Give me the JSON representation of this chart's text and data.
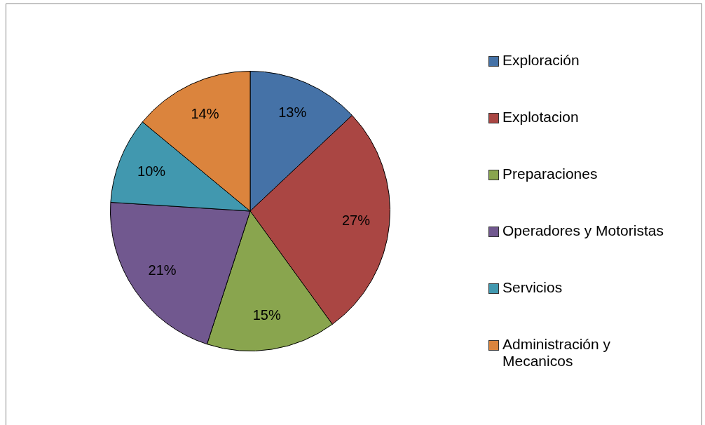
{
  "chart_data": {
    "type": "pie",
    "categories": [
      "Exploración",
      "Explotacion",
      "Preparaciones",
      "Operadores y Motoristas",
      "Servicios",
      "Administración y Mecanicos"
    ],
    "values": [
      13,
      27,
      15,
      21,
      10,
      14
    ],
    "colors": [
      "#4572a7",
      "#aa4643",
      "#89a54e",
      "#71588f",
      "#4198af",
      "#db843d"
    ],
    "value_labels": [
      "13%",
      "27%",
      "15%",
      "21%",
      "10%",
      "14%"
    ],
    "legend": "right"
  }
}
